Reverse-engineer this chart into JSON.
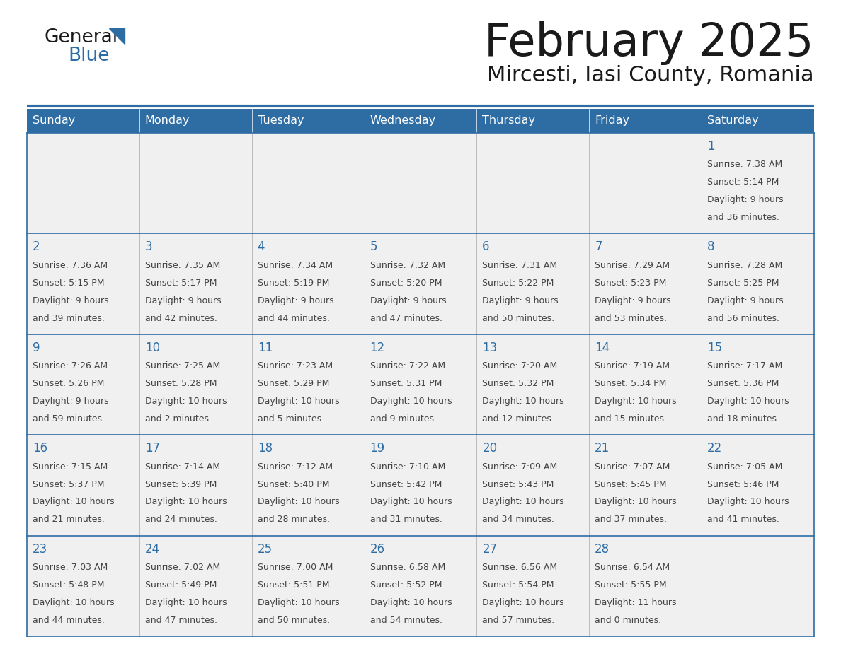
{
  "title": "February 2025",
  "subtitle": "Mircesti, Iasi County, Romania",
  "header_bg": "#2E6DA4",
  "header_text_color": "#FFFFFF",
  "cell_bg_light": "#F0F0F0",
  "cell_bg_white": "#FFFFFF",
  "border_color": "#2E6DA4",
  "title_color": "#1a1a1a",
  "subtitle_color": "#1a1a1a",
  "day_number_color": "#2E6DA4",
  "cell_text_color": "#444444",
  "days_of_week": [
    "Sunday",
    "Monday",
    "Tuesday",
    "Wednesday",
    "Thursday",
    "Friday",
    "Saturday"
  ],
  "calendar_data": [
    [
      null,
      null,
      null,
      null,
      null,
      null,
      {
        "day": "1",
        "sunrise": "7:38 AM",
        "sunset": "5:14 PM",
        "daylight1": "Daylight: 9 hours",
        "daylight2": "and 36 minutes."
      }
    ],
    [
      {
        "day": "2",
        "sunrise": "7:36 AM",
        "sunset": "5:15 PM",
        "daylight1": "Daylight: 9 hours",
        "daylight2": "and 39 minutes."
      },
      {
        "day": "3",
        "sunrise": "7:35 AM",
        "sunset": "5:17 PM",
        "daylight1": "Daylight: 9 hours",
        "daylight2": "and 42 minutes."
      },
      {
        "day": "4",
        "sunrise": "7:34 AM",
        "sunset": "5:19 PM",
        "daylight1": "Daylight: 9 hours",
        "daylight2": "and 44 minutes."
      },
      {
        "day": "5",
        "sunrise": "7:32 AM",
        "sunset": "5:20 PM",
        "daylight1": "Daylight: 9 hours",
        "daylight2": "and 47 minutes."
      },
      {
        "day": "6",
        "sunrise": "7:31 AM",
        "sunset": "5:22 PM",
        "daylight1": "Daylight: 9 hours",
        "daylight2": "and 50 minutes."
      },
      {
        "day": "7",
        "sunrise": "7:29 AM",
        "sunset": "5:23 PM",
        "daylight1": "Daylight: 9 hours",
        "daylight2": "and 53 minutes."
      },
      {
        "day": "8",
        "sunrise": "7:28 AM",
        "sunset": "5:25 PM",
        "daylight1": "Daylight: 9 hours",
        "daylight2": "and 56 minutes."
      }
    ],
    [
      {
        "day": "9",
        "sunrise": "7:26 AM",
        "sunset": "5:26 PM",
        "daylight1": "Daylight: 9 hours",
        "daylight2": "and 59 minutes."
      },
      {
        "day": "10",
        "sunrise": "7:25 AM",
        "sunset": "5:28 PM",
        "daylight1": "Daylight: 10 hours",
        "daylight2": "and 2 minutes."
      },
      {
        "day": "11",
        "sunrise": "7:23 AM",
        "sunset": "5:29 PM",
        "daylight1": "Daylight: 10 hours",
        "daylight2": "and 5 minutes."
      },
      {
        "day": "12",
        "sunrise": "7:22 AM",
        "sunset": "5:31 PM",
        "daylight1": "Daylight: 10 hours",
        "daylight2": "and 9 minutes."
      },
      {
        "day": "13",
        "sunrise": "7:20 AM",
        "sunset": "5:32 PM",
        "daylight1": "Daylight: 10 hours",
        "daylight2": "and 12 minutes."
      },
      {
        "day": "14",
        "sunrise": "7:19 AM",
        "sunset": "5:34 PM",
        "daylight1": "Daylight: 10 hours",
        "daylight2": "and 15 minutes."
      },
      {
        "day": "15",
        "sunrise": "7:17 AM",
        "sunset": "5:36 PM",
        "daylight1": "Daylight: 10 hours",
        "daylight2": "and 18 minutes."
      }
    ],
    [
      {
        "day": "16",
        "sunrise": "7:15 AM",
        "sunset": "5:37 PM",
        "daylight1": "Daylight: 10 hours",
        "daylight2": "and 21 minutes."
      },
      {
        "day": "17",
        "sunrise": "7:14 AM",
        "sunset": "5:39 PM",
        "daylight1": "Daylight: 10 hours",
        "daylight2": "and 24 minutes."
      },
      {
        "day": "18",
        "sunrise": "7:12 AM",
        "sunset": "5:40 PM",
        "daylight1": "Daylight: 10 hours",
        "daylight2": "and 28 minutes."
      },
      {
        "day": "19",
        "sunrise": "7:10 AM",
        "sunset": "5:42 PM",
        "daylight1": "Daylight: 10 hours",
        "daylight2": "and 31 minutes."
      },
      {
        "day": "20",
        "sunrise": "7:09 AM",
        "sunset": "5:43 PM",
        "daylight1": "Daylight: 10 hours",
        "daylight2": "and 34 minutes."
      },
      {
        "day": "21",
        "sunrise": "7:07 AM",
        "sunset": "5:45 PM",
        "daylight1": "Daylight: 10 hours",
        "daylight2": "and 37 minutes."
      },
      {
        "day": "22",
        "sunrise": "7:05 AM",
        "sunset": "5:46 PM",
        "daylight1": "Daylight: 10 hours",
        "daylight2": "and 41 minutes."
      }
    ],
    [
      {
        "day": "23",
        "sunrise": "7:03 AM",
        "sunset": "5:48 PM",
        "daylight1": "Daylight: 10 hours",
        "daylight2": "and 44 minutes."
      },
      {
        "day": "24",
        "sunrise": "7:02 AM",
        "sunset": "5:49 PM",
        "daylight1": "Daylight: 10 hours",
        "daylight2": "and 47 minutes."
      },
      {
        "day": "25",
        "sunrise": "7:00 AM",
        "sunset": "5:51 PM",
        "daylight1": "Daylight: 10 hours",
        "daylight2": "and 50 minutes."
      },
      {
        "day": "26",
        "sunrise": "6:58 AM",
        "sunset": "5:52 PM",
        "daylight1": "Daylight: 10 hours",
        "daylight2": "and 54 minutes."
      },
      {
        "day": "27",
        "sunrise": "6:56 AM",
        "sunset": "5:54 PM",
        "daylight1": "Daylight: 10 hours",
        "daylight2": "and 57 minutes."
      },
      {
        "day": "28",
        "sunrise": "6:54 AM",
        "sunset": "5:55 PM",
        "daylight1": "Daylight: 11 hours",
        "daylight2": "and 0 minutes."
      },
      null
    ]
  ]
}
